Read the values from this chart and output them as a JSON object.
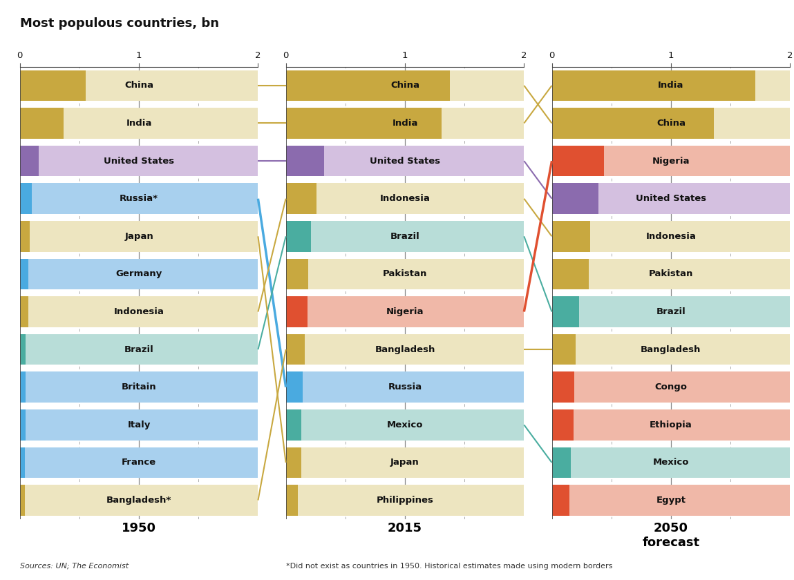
{
  "title": "Most populous countries, bn",
  "source_text": "Sources: UN; The Economist",
  "footnote_text": "*Did not exist as countries in 1950. Historical estimates made using modern borders",
  "data_1950": [
    {
      "country": "China",
      "value": 0.55,
      "bar_color": "#C8A840",
      "bg_color": "#EDE5C0"
    },
    {
      "country": "India",
      "value": 0.37,
      "bar_color": "#C8A840",
      "bg_color": "#EDE5C0"
    },
    {
      "country": "United States",
      "value": 0.16,
      "bar_color": "#8B6BAE",
      "bg_color": "#D4C0E0"
    },
    {
      "country": "Russia*",
      "value": 0.1,
      "bar_color": "#4AAAE0",
      "bg_color": "#A8D0EE"
    },
    {
      "country": "Japan",
      "value": 0.08,
      "bar_color": "#C8A840",
      "bg_color": "#EDE5C0"
    },
    {
      "country": "Germany",
      "value": 0.07,
      "bar_color": "#4AAAE0",
      "bg_color": "#A8D0EE"
    },
    {
      "country": "Indonesia",
      "value": 0.07,
      "bar_color": "#C8A840",
      "bg_color": "#EDE5C0"
    },
    {
      "country": "Brazil",
      "value": 0.05,
      "bar_color": "#4AADA0",
      "bg_color": "#B8DDD8"
    },
    {
      "country": "Britain",
      "value": 0.05,
      "bar_color": "#4AAAE0",
      "bg_color": "#A8D0EE"
    },
    {
      "country": "Italy",
      "value": 0.05,
      "bar_color": "#4AAAE0",
      "bg_color": "#A8D0EE"
    },
    {
      "country": "France",
      "value": 0.04,
      "bar_color": "#4AAAE0",
      "bg_color": "#A8D0EE"
    },
    {
      "country": "Bangladesh*",
      "value": 0.04,
      "bar_color": "#C8A840",
      "bg_color": "#EDE5C0"
    }
  ],
  "data_2015": [
    {
      "country": "China",
      "value": 1.38,
      "bar_color": "#C8A840",
      "bg_color": "#EDE5C0"
    },
    {
      "country": "India",
      "value": 1.31,
      "bar_color": "#C8A840",
      "bg_color": "#EDE5C0"
    },
    {
      "country": "United States",
      "value": 0.32,
      "bar_color": "#8B6BAE",
      "bg_color": "#D4C0E0"
    },
    {
      "country": "Indonesia",
      "value": 0.26,
      "bar_color": "#C8A840",
      "bg_color": "#EDE5C0"
    },
    {
      "country": "Brazil",
      "value": 0.21,
      "bar_color": "#4AADA0",
      "bg_color": "#B8DDD8"
    },
    {
      "country": "Pakistan",
      "value": 0.19,
      "bar_color": "#C8A840",
      "bg_color": "#EDE5C0"
    },
    {
      "country": "Nigeria",
      "value": 0.18,
      "bar_color": "#E05030",
      "bg_color": "#F0B8A8"
    },
    {
      "country": "Bangladesh",
      "value": 0.16,
      "bar_color": "#C8A840",
      "bg_color": "#EDE5C0"
    },
    {
      "country": "Russia",
      "value": 0.14,
      "bar_color": "#4AAAE0",
      "bg_color": "#A8D0EE"
    },
    {
      "country": "Mexico",
      "value": 0.13,
      "bar_color": "#4AADA0",
      "bg_color": "#B8DDD8"
    },
    {
      "country": "Japan",
      "value": 0.13,
      "bar_color": "#C8A840",
      "bg_color": "#EDE5C0"
    },
    {
      "country": "Philippines",
      "value": 0.1,
      "bar_color": "#C8A840",
      "bg_color": "#EDE5C0"
    }
  ],
  "data_2050": [
    {
      "country": "India",
      "value": 1.71,
      "bar_color": "#C8A840",
      "bg_color": "#EDE5C0"
    },
    {
      "country": "China",
      "value": 1.36,
      "bar_color": "#C8A840",
      "bg_color": "#EDE5C0"
    },
    {
      "country": "Nigeria",
      "value": 0.44,
      "bar_color": "#E05030",
      "bg_color": "#F0B8A8"
    },
    {
      "country": "United States",
      "value": 0.39,
      "bar_color": "#8B6BAE",
      "bg_color": "#D4C0E0"
    },
    {
      "country": "Indonesia",
      "value": 0.32,
      "bar_color": "#C8A840",
      "bg_color": "#EDE5C0"
    },
    {
      "country": "Pakistan",
      "value": 0.31,
      "bar_color": "#C8A840",
      "bg_color": "#EDE5C0"
    },
    {
      "country": "Brazil",
      "value": 0.23,
      "bar_color": "#4AADA0",
      "bg_color": "#B8DDD8"
    },
    {
      "country": "Bangladesh",
      "value": 0.2,
      "bar_color": "#C8A840",
      "bg_color": "#EDE5C0"
    },
    {
      "country": "Congo",
      "value": 0.19,
      "bar_color": "#E05030",
      "bg_color": "#F0B8A8"
    },
    {
      "country": "Ethiopia",
      "value": 0.18,
      "bar_color": "#E05030",
      "bg_color": "#F0B8A8"
    },
    {
      "country": "Mexico",
      "value": 0.16,
      "bar_color": "#4AADA0",
      "bg_color": "#B8DDD8"
    },
    {
      "country": "Egypt",
      "value": 0.15,
      "bar_color": "#E05030",
      "bg_color": "#F0B8A8"
    }
  ],
  "bg_color": "#FFFFFF",
  "bar_height": 0.82,
  "xmax": 2.0,
  "connectors": [
    {
      "c1": "China",
      "c2": "China",
      "c3": "China",
      "color": "#C8A840",
      "lw": 1.5
    },
    {
      "c1": "India",
      "c2": "India",
      "c3": "India",
      "color": "#C8A840",
      "lw": 1.5
    },
    {
      "c1": "United States",
      "c2": "United States",
      "c3": "United States",
      "color": "#8B6BAE",
      "lw": 1.5
    },
    {
      "c1": "Russia",
      "c2": "Russia",
      "c3": null,
      "color": "#4AAAE0",
      "lw": 2.5
    },
    {
      "c1": "Indonesia",
      "c2": "Indonesia",
      "c3": "Indonesia",
      "color": "#C8A840",
      "lw": 1.5
    },
    {
      "c1": "Brazil",
      "c2": "Brazil",
      "c3": "Brazil",
      "color": "#4AADA0",
      "lw": 1.5
    },
    {
      "c1": "Nigeria",
      "c2": "Nigeria",
      "c3": "Nigeria",
      "color": "#E05030",
      "lw": 2.5
    },
    {
      "c1": "Bangladesh",
      "c2": "Bangladesh",
      "c3": "Bangladesh",
      "color": "#C8A840",
      "lw": 1.5
    },
    {
      "c1": "Mexico",
      "c2": "Mexico",
      "c3": "Mexico",
      "color": "#4AADA0",
      "lw": 1.5
    },
    {
      "c1": "Japan",
      "c2": "Japan",
      "c3": null,
      "color": "#C8A840",
      "lw": 1.5
    }
  ]
}
